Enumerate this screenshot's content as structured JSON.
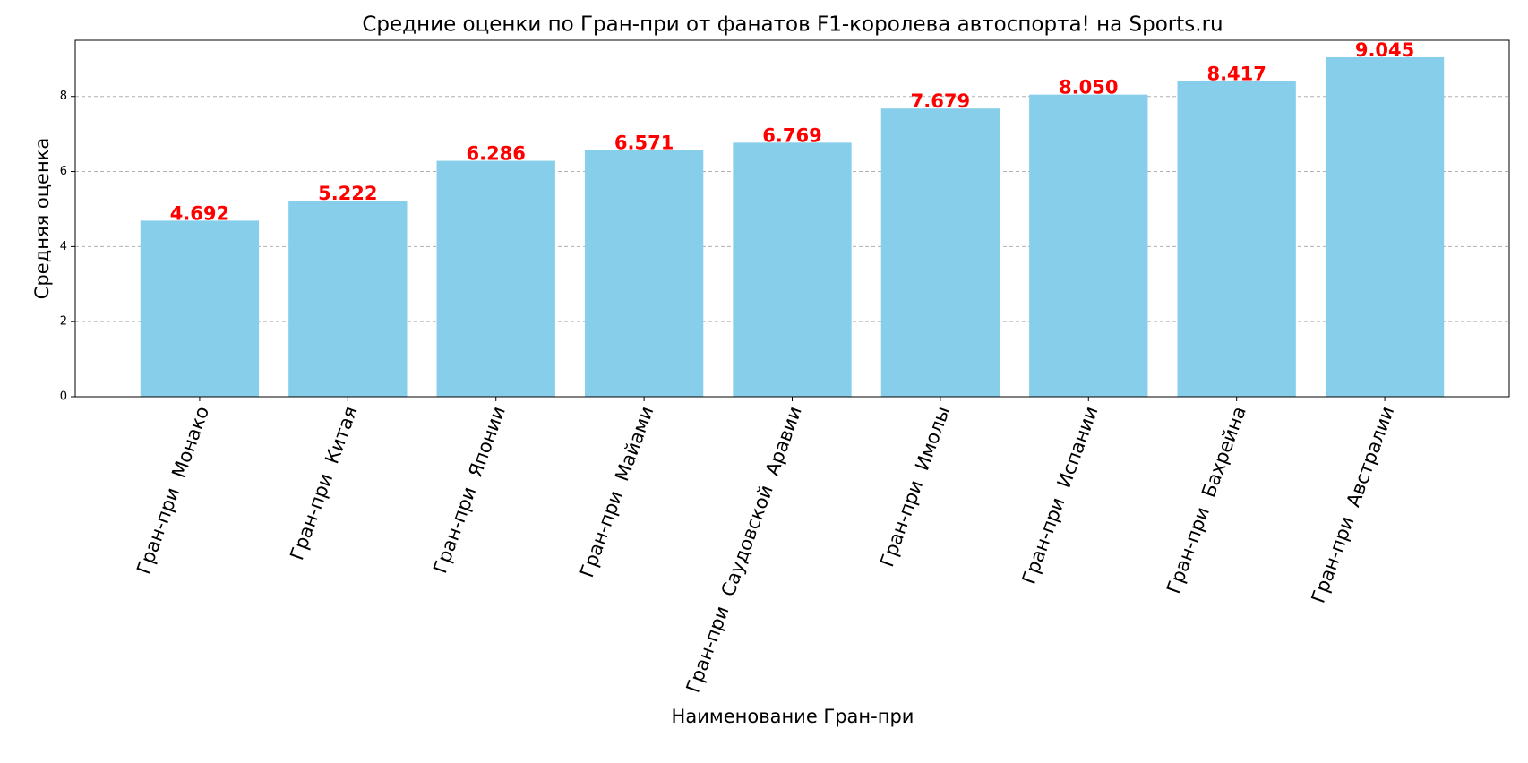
{
  "chart_data": {
    "type": "bar",
    "title": "Средние оценки по Гран-при от фанатов F1-королева автоспорта! на Sports.ru",
    "x_label": "Наименование Гран-при",
    "y_label": "Средняя оценка",
    "categories": [
      "Гран-при  Монако",
      "Гран-при  Китая",
      "Гран-при  Японии",
      "Гран-при  Майами",
      "Гран-при  Саудовской  Аравии",
      "Гран-при  Имолы",
      "Гран-при  Испании",
      "Гран-при  Бахрейна",
      "Гран-при  Австралии"
    ],
    "values": [
      4.692,
      5.222,
      6.286,
      6.571,
      6.769,
      7.679,
      8.05,
      8.417,
      9.045
    ],
    "value_labels": [
      "4.692",
      "5.222",
      "6.286",
      "6.571",
      "6.769",
      "7.679",
      "8.050",
      "8.417",
      "9.045"
    ],
    "color": "#87ceeb",
    "label_color": "#ff0000",
    "ylim": [
      0,
      9.497
    ],
    "yticks": [
      0,
      2,
      4,
      6,
      8
    ],
    "grid": true
  }
}
